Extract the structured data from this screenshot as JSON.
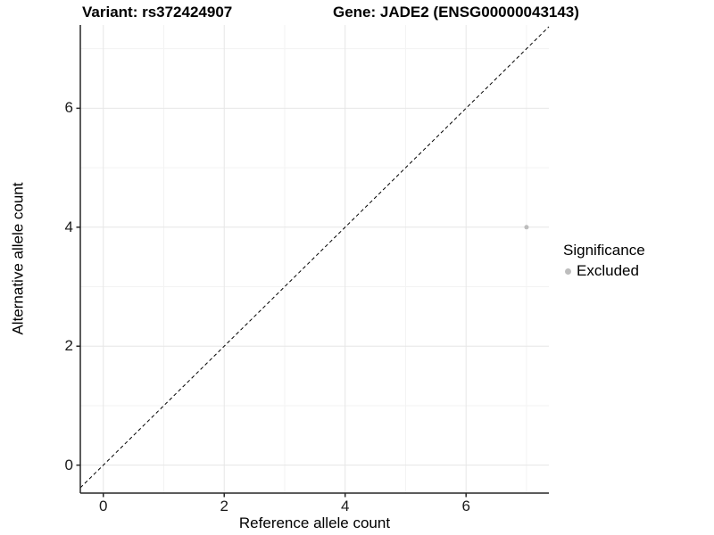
{
  "chart_data": {
    "type": "scatter",
    "titles": {
      "left": "Variant: rs372424907",
      "right": "Gene: JADE2 (ENSG00000043143)"
    },
    "xlabel": "Reference allele count",
    "ylabel": "Alternative allele count",
    "x_ticks": [
      0,
      2,
      4,
      6
    ],
    "x_minor_ticks": [
      1,
      3,
      5,
      7
    ],
    "y_ticks": [
      0,
      2,
      4,
      6
    ],
    "y_minor_ticks": [
      1,
      3,
      5,
      7
    ],
    "xlim": [
      -0.38,
      7.37
    ],
    "ylim": [
      -0.47,
      7.4
    ],
    "grid": true,
    "identity_line": {
      "style": "dashed",
      "slope": 1,
      "intercept": 0
    },
    "points": [
      {
        "x": 7,
        "y": 4,
        "series": "Excluded"
      }
    ],
    "legend": {
      "title": "Significance",
      "position": "right",
      "items": [
        {
          "label": "Excluded",
          "color": "#bdbdbd"
        }
      ]
    },
    "colors": {
      "point": "#bdbdbd",
      "grid_major": "#e6e6e6",
      "grid_minor": "#f3f3f3",
      "axis_line": "#262626",
      "dashed_line": "#000000",
      "tick_text": "#1a1a1a"
    }
  }
}
